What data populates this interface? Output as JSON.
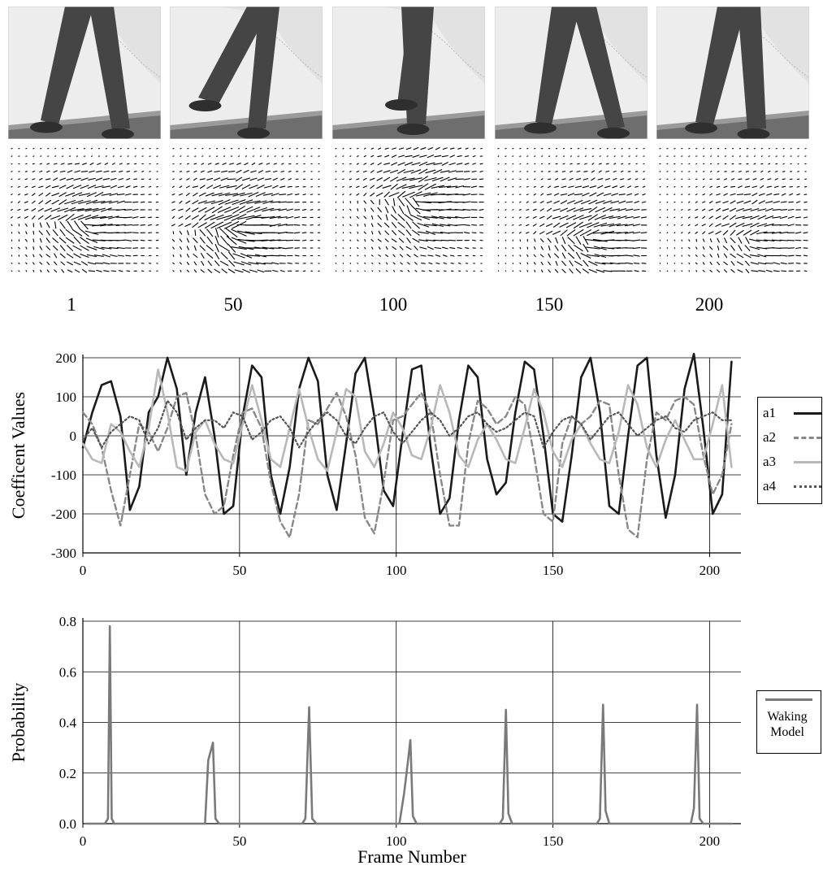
{
  "frames": [
    "1",
    "50",
    "100",
    "150",
    "200"
  ],
  "colors": {
    "a1": "#1a1a1a",
    "a2": "#888888",
    "a3": "#b8b8b8",
    "a4": "#555555",
    "walking": "#7a7a7a",
    "grid": "#000000"
  },
  "chart_data": [
    {
      "type": "line",
      "ylabel": "Coefficent Values",
      "xlabel": "",
      "xlim": [
        0,
        210
      ],
      "ylim": [
        -300,
        200
      ],
      "xticks": [
        0,
        50,
        100,
        150,
        200
      ],
      "yticks": [
        200,
        100,
        0,
        -100,
        -200,
        -300
      ],
      "grid": true,
      "legend_position": "right",
      "x": [
        0,
        3,
        6,
        9,
        12,
        15,
        18,
        21,
        24,
        27,
        30,
        33,
        36,
        39,
        42,
        45,
        48,
        51,
        54,
        57,
        60,
        63,
        66,
        69,
        72,
        75,
        78,
        81,
        84,
        87,
        90,
        93,
        96,
        99,
        102,
        105,
        108,
        111,
        114,
        117,
        120,
        123,
        126,
        129,
        132,
        135,
        138,
        141,
        144,
        147,
        150,
        153,
        156,
        159,
        162,
        165,
        168,
        171,
        174,
        177,
        180,
        183,
        186,
        189,
        192,
        195,
        198,
        201,
        204,
        207
      ],
      "series": [
        {
          "name": "a1",
          "values": [
            -30,
            60,
            130,
            140,
            50,
            -190,
            -130,
            60,
            100,
            200,
            120,
            -100,
            60,
            150,
            0,
            -200,
            -180,
            50,
            180,
            150,
            -100,
            -200,
            -80,
            120,
            200,
            140,
            -100,
            -190,
            -20,
            160,
            200,
            50,
            -140,
            -180,
            0,
            170,
            180,
            -30,
            -200,
            -160,
            40,
            180,
            150,
            -60,
            -150,
            -120,
            60,
            190,
            170,
            0,
            -200,
            -220,
            -50,
            150,
            200,
            60,
            -180,
            -200,
            0,
            180,
            200,
            -50,
            -210,
            -100,
            120,
            210,
            20,
            -200,
            -150,
            190
          ]
        },
        {
          "name": "a2",
          "values": [
            60,
            30,
            -30,
            -140,
            -230,
            -100,
            30,
            10,
            -40,
            20,
            100,
            110,
            0,
            -150,
            -200,
            -180,
            -50,
            60,
            70,
            20,
            -120,
            -220,
            -260,
            -150,
            40,
            30,
            70,
            110,
            50,
            -50,
            -210,
            -250,
            -120,
            40,
            50,
            80,
            110,
            60,
            -100,
            -230,
            -230,
            -20,
            90,
            70,
            30,
            50,
            100,
            80,
            -50,
            -200,
            -220,
            -20,
            50,
            30,
            50,
            90,
            80,
            -100,
            -240,
            -260,
            -60,
            60,
            40,
            90,
            100,
            80,
            -50,
            -150,
            -100,
            30
          ]
        },
        {
          "name": "a3",
          "values": [
            -20,
            -60,
            -70,
            30,
            10,
            -40,
            -80,
            20,
            170,
            60,
            -80,
            -90,
            10,
            40,
            -20,
            -60,
            -70,
            30,
            130,
            40,
            -60,
            -80,
            20,
            120,
            20,
            -60,
            -90,
            10,
            120,
            100,
            -40,
            -80,
            -20,
            60,
            20,
            -50,
            -60,
            20,
            130,
            60,
            -50,
            -80,
            -10,
            30,
            -10,
            -60,
            -70,
            20,
            120,
            60,
            -40,
            -80,
            -10,
            30,
            -20,
            -60,
            -70,
            10,
            130,
            80,
            -30,
            -80,
            -10,
            40,
            -10,
            -60,
            -60,
            30,
            130,
            -80
          ]
        },
        {
          "name": "a4",
          "values": [
            -10,
            20,
            -30,
            10,
            30,
            50,
            40,
            -20,
            20,
            90,
            60,
            -10,
            20,
            40,
            40,
            20,
            60,
            50,
            -10,
            10,
            40,
            50,
            20,
            -30,
            10,
            40,
            60,
            40,
            0,
            -20,
            20,
            50,
            60,
            10,
            -20,
            10,
            40,
            60,
            40,
            0,
            20,
            50,
            60,
            30,
            10,
            20,
            40,
            60,
            50,
            -30,
            10,
            40,
            50,
            30,
            -10,
            20,
            50,
            60,
            30,
            0,
            20,
            40,
            50,
            20,
            10,
            40,
            50,
            60,
            40,
            40
          ]
        }
      ]
    },
    {
      "type": "line",
      "ylabel": "Probability",
      "xlabel": "Frame Number",
      "xlim": [
        0,
        210
      ],
      "ylim": [
        0,
        0.8
      ],
      "xticks": [
        0,
        50,
        100,
        150,
        200
      ],
      "yticks": [
        0.8,
        0.6,
        0.4,
        0.2,
        0.0
      ],
      "ytick_labels": [
        "0.8",
        "0.6",
        "0.4",
        "0.2",
        "0.0"
      ],
      "grid": true,
      "legend_position": "right",
      "x": [
        1,
        7,
        8,
        8.6,
        9.2,
        10,
        11,
        39,
        40,
        41.5,
        42.3,
        43.5,
        70,
        71,
        72.2,
        73.2,
        74.5,
        101,
        102.5,
        103.4,
        104.5,
        105.3,
        106.5,
        133,
        134,
        135,
        135.8,
        137,
        164,
        165,
        166,
        166.8,
        168,
        194,
        195,
        196,
        196.8,
        198,
        207
      ],
      "series": [
        {
          "name": "Waking Model",
          "values": [
            0,
            0,
            0.02,
            0.78,
            0.02,
            0,
            0,
            0,
            0.25,
            0.32,
            0.02,
            0,
            0,
            0.02,
            0.46,
            0.02,
            0,
            0,
            0.12,
            0.21,
            0.33,
            0.03,
            0,
            0,
            0.02,
            0.45,
            0.04,
            0,
            0,
            0.02,
            0.47,
            0.05,
            0,
            0,
            0.06,
            0.47,
            0.02,
            0,
            0
          ]
        }
      ]
    }
  ]
}
